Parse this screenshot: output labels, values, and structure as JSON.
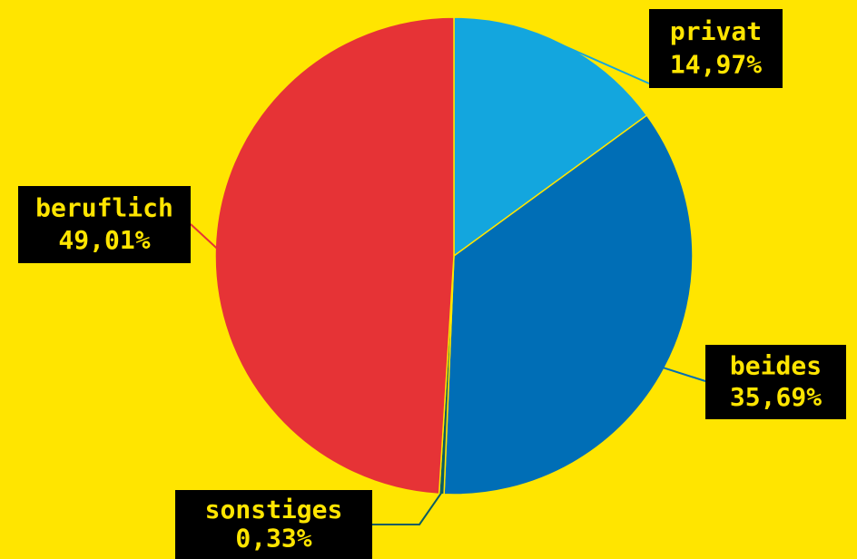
{
  "chart_data": {
    "type": "pie",
    "categories": [
      "privat",
      "beides",
      "sonstiges",
      "beruflich"
    ],
    "values": [
      14.97,
      35.69,
      0.33,
      49.01
    ],
    "value_labels": [
      "14,97%",
      "35,69%",
      "0,33%",
      "49,01%"
    ],
    "colors": [
      "#13a6de",
      "#006eb6",
      "#0c5c63",
      "#e63336"
    ]
  }
}
